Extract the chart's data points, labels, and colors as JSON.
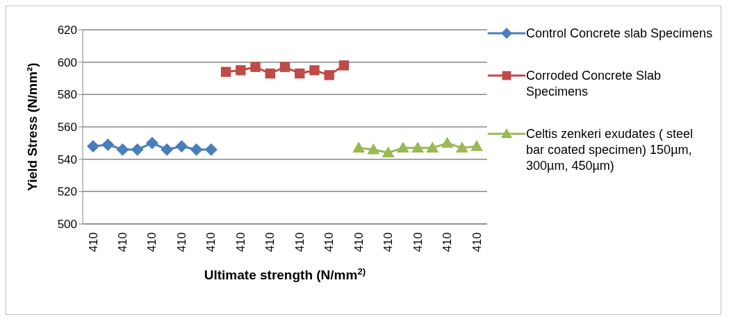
{
  "chart_data": {
    "type": "line",
    "xlabel": "Ultimate strength (N/mm$^{2)}$",
    "ylabel": "Yield Stress (N/mm²)",
    "categories": [
      "410",
      null,
      "410",
      null,
      "410",
      null,
      "410",
      null,
      "410",
      null,
      "410",
      null,
      "410",
      null,
      "410",
      null,
      "410",
      null,
      "410",
      null,
      "410",
      null,
      "410",
      null,
      "410",
      null,
      "410"
    ],
    "series": [
      {
        "name": "Control  Concrete slab Specimens",
        "color": "#4a7ebb",
        "marker": "diamond",
        "values": [
          548,
          549,
          546,
          546,
          550,
          546,
          548,
          546,
          546,
          null,
          null,
          null,
          null,
          null,
          null,
          null,
          null,
          null,
          null,
          null,
          null,
          null,
          null,
          null,
          null,
          null,
          null
        ]
      },
      {
        "name": "Corroded  Concrete Slab Specimens",
        "color": "#be4b48",
        "marker": "square",
        "values": [
          null,
          null,
          null,
          null,
          null,
          null,
          null,
          null,
          null,
          594,
          595,
          597,
          593,
          597,
          593,
          595,
          592,
          598,
          null,
          null,
          null,
          null,
          null,
          null,
          null,
          null,
          null
        ]
      },
      {
        "name": "Celtis zenkeri exudates ( steel bar coated specimen) 150µm, 300µm, 450µm)",
        "color": "#98b954",
        "marker": "triangle",
        "values": [
          null,
          null,
          null,
          null,
          null,
          null,
          null,
          null,
          null,
          null,
          null,
          null,
          null,
          null,
          null,
          null,
          null,
          null,
          547,
          546,
          544,
          547,
          547,
          547,
          550,
          547,
          548
        ]
      }
    ],
    "ylim": [
      500,
      620
    ],
    "yticks": [
      500,
      520,
      540,
      560,
      580,
      600,
      620
    ],
    "grid": "y",
    "legend": "right"
  }
}
